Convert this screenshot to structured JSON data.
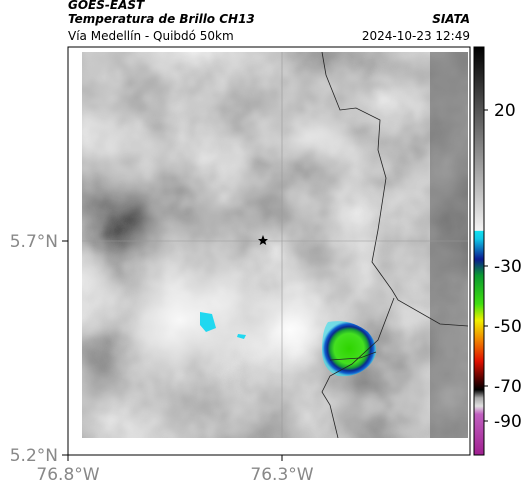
{
  "header": {
    "source": "GOES-EAST",
    "product": "Temperatura de Brillo CH13",
    "org": "SIATA",
    "route": "Vía Medellín - Quibdó 50km",
    "datetime": "2024-10-23 12:49"
  },
  "map": {
    "lat_labels": [
      "5.7°N",
      "5.2°N"
    ],
    "lon_labels": [
      "76.8°W",
      "76.3°W"
    ]
  },
  "colorbar": {
    "labels": [
      "20",
      "-30",
      "-50",
      "-70",
      "-90"
    ]
  }
}
